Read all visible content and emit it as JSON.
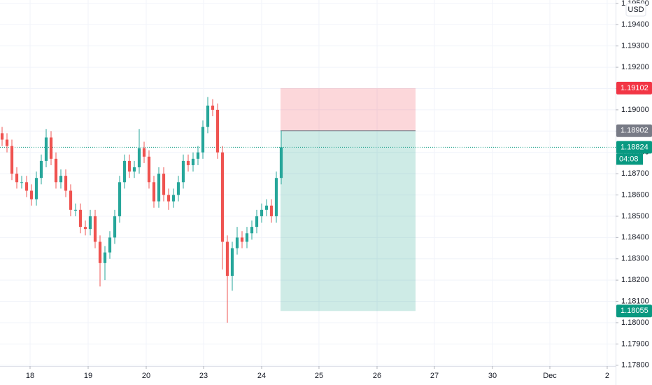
{
  "chart_data": {
    "type": "candlestick",
    "currency": "USD",
    "x": [
      0,
      1,
      2,
      3,
      4,
      5,
      6,
      7,
      8,
      9,
      10,
      11,
      12,
      13,
      14,
      15,
      16,
      17,
      18,
      19,
      20,
      21,
      22,
      23,
      24,
      25,
      26,
      27,
      28,
      29,
      30,
      31,
      32,
      33,
      34,
      35,
      36,
      37,
      38,
      39,
      40,
      41,
      42,
      43,
      44,
      45,
      46,
      47,
      48,
      49,
      50,
      51,
      52,
      53,
      54,
      55,
      56,
      57
    ],
    "open": [
      1.1889,
      1.1886,
      1.1883,
      1.187,
      1.1866,
      1.1866,
      1.1862,
      1.1858,
      1.1868,
      1.1876,
      1.1887,
      1.1877,
      1.1866,
      1.1869,
      1.1862,
      1.1853,
      1.1853,
      1.1845,
      1.1844,
      1.185,
      1.1838,
      1.1828,
      1.1833,
      1.184,
      1.185,
      1.1866,
      1.1876,
      1.1871,
      1.1873,
      1.1882,
      1.1878,
      1.1866,
      1.1857,
      1.187,
      1.186,
      1.1857,
      1.186,
      1.1866,
      1.1876,
      1.1874,
      1.1877,
      1.188,
      1.1892,
      1.1902,
      1.19,
      1.188,
      1.1838,
      1.1822,
      1.1835,
      1.184,
      1.1838,
      1.1842,
      1.1845,
      1.185,
      1.1853,
      1.1855,
      1.185,
      1.1868
    ],
    "high": [
      1.1892,
      1.1889,
      1.1886,
      1.1873,
      1.1869,
      1.1869,
      1.1865,
      1.1871,
      1.1879,
      1.1891,
      1.189,
      1.188,
      1.1872,
      1.1872,
      1.1865,
      1.1856,
      1.1856,
      1.1848,
      1.1853,
      1.1853,
      1.1841,
      1.1836,
      1.1843,
      1.1853,
      1.1869,
      1.1879,
      1.1879,
      1.1876,
      1.1891,
      1.1885,
      1.1881,
      1.1869,
      1.1873,
      1.1873,
      1.1863,
      1.1863,
      1.1869,
      1.1879,
      1.1879,
      1.188,
      1.1883,
      1.1895,
      1.1906,
      1.1905,
      1.1903,
      1.1883,
      1.1841,
      1.1838,
      1.1845,
      1.1843,
      1.1845,
      1.1848,
      1.1853,
      1.1856,
      1.1858,
      1.1858,
      1.1871,
      1.18902
    ],
    "low": [
      1.1883,
      1.188,
      1.1867,
      1.1863,
      1.1863,
      1.1859,
      1.1855,
      1.1855,
      1.1865,
      1.1873,
      1.1874,
      1.1863,
      1.1863,
      1.1859,
      1.185,
      1.185,
      1.1842,
      1.1841,
      1.1841,
      1.1835,
      1.1817,
      1.182,
      1.183,
      1.1837,
      1.1847,
      1.1863,
      1.1868,
      1.1868,
      1.187,
      1.1875,
      1.1863,
      1.1854,
      1.1854,
      1.1857,
      1.1853,
      1.1854,
      1.1857,
      1.1863,
      1.1871,
      1.1871,
      1.1874,
      1.1877,
      1.1889,
      1.1897,
      1.1877,
      1.1825,
      1.18,
      1.1815,
      1.1832,
      1.1835,
      1.1835,
      1.1839,
      1.1842,
      1.1847,
      1.185,
      1.1847,
      1.1847,
      1.1865
    ],
    "close": [
      1.1886,
      1.1883,
      1.187,
      1.1866,
      1.1866,
      1.1862,
      1.1858,
      1.1868,
      1.1876,
      1.1887,
      1.1877,
      1.1866,
      1.1869,
      1.1862,
      1.1853,
      1.1853,
      1.1845,
      1.1844,
      1.185,
      1.1838,
      1.1828,
      1.1833,
      1.184,
      1.185,
      1.1866,
      1.1876,
      1.1871,
      1.1873,
      1.1882,
      1.1878,
      1.1866,
      1.1857,
      1.187,
      1.186,
      1.1857,
      1.186,
      1.1866,
      1.1876,
      1.1874,
      1.1877,
      1.188,
      1.1892,
      1.1902,
      1.19,
      1.188,
      1.1838,
      1.1822,
      1.1835,
      1.184,
      1.1838,
      1.1842,
      1.1845,
      1.185,
      1.1853,
      1.1855,
      1.185,
      1.1868,
      1.18824
    ],
    "up_color": "#26a69a",
    "down_color": "#ef5350",
    "xlim": [
      -0.43,
      125.29
    ],
    "xticks": [
      {
        "value": 5.71,
        "label": "18"
      },
      {
        "value": 17.57,
        "label": "19"
      },
      {
        "value": 29.43,
        "label": "20"
      },
      {
        "value": 41.14,
        "label": "23"
      },
      {
        "value": 53,
        "label": "24"
      },
      {
        "value": 64.71,
        "label": "25"
      },
      {
        "value": 76.57,
        "label": "26"
      },
      {
        "value": 88.29,
        "label": "27"
      },
      {
        "value": 100.14,
        "label": "30"
      },
      {
        "value": 111.86,
        "label": "Dec"
      },
      {
        "value": 123.57,
        "label": "2"
      }
    ],
    "ylim": [
      1.17796,
      1.19516
    ],
    "yticks": [
      {
        "value": 1.178,
        "label": "1.17800"
      },
      {
        "value": 1.179,
        "label": "1.17900"
      },
      {
        "value": 1.18,
        "label": "1.18000"
      },
      {
        "value": 1.181,
        "label": "1.18100"
      },
      {
        "value": 1.182,
        "label": "1.18200"
      },
      {
        "value": 1.183,
        "label": "1.18300"
      },
      {
        "value": 1.184,
        "label": "1.18400"
      },
      {
        "value": 1.185,
        "label": "1.18500"
      },
      {
        "value": 1.186,
        "label": "1.18600"
      },
      {
        "value": 1.187,
        "label": "1.18700"
      },
      {
        "value": 1.188,
        "label": "1.18800"
      },
      {
        "value": 1.189,
        "label": "1.18900"
      },
      {
        "value": 1.19,
        "label": "1.19000"
      },
      {
        "value": 1.191,
        "label": "1.19100"
      },
      {
        "value": 1.192,
        "label": "1.19200"
      },
      {
        "value": 1.193,
        "label": "1.19300"
      },
      {
        "value": 1.194,
        "label": "1.19400"
      },
      {
        "value": 1.195,
        "label": "1.19500"
      }
    ],
    "grid": true,
    "last_price": 1.18824,
    "last_price_color": "#089981",
    "countdown": "04:08",
    "position": {
      "entry": 1.18902,
      "stop": 1.19102,
      "target": 1.18055,
      "x": [
        56.86,
        84.43
      ],
      "stop_color": "#f23645",
      "target_color": "#089981",
      "entry_color": "#787b86"
    }
  }
}
